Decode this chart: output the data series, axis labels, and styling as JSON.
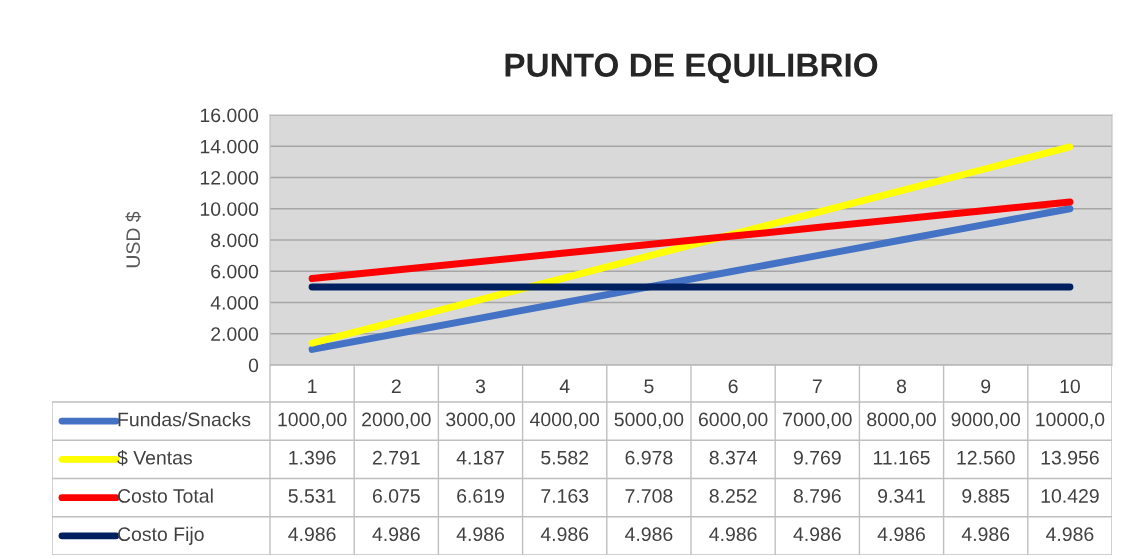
{
  "chart_data": {
    "type": "line",
    "title": "PUNTO DE EQUILIBRIO",
    "ylabel": "USD $",
    "categories": [
      "1",
      "2",
      "3",
      "4",
      "5",
      "6",
      "7",
      "8",
      "9",
      "10"
    ],
    "ylim": [
      0,
      16000
    ],
    "yticks": [
      0,
      {
        "value": 2000,
        "label": "2.000"
      },
      {
        "value": 4000,
        "label": "4.000"
      },
      {
        "value": 6000,
        "label": "6.000"
      },
      {
        "value": 8000,
        "label": "8.000"
      },
      {
        "value": 10000,
        "label": "10.000"
      },
      {
        "value": 12000,
        "label": "12.000"
      },
      {
        "value": 14000,
        "label": "14.000"
      },
      {
        "value": 16000,
        "label": "16.000"
      }
    ],
    "grid": "y",
    "legend": "bottom",
    "marker": "none",
    "line_style": "solid",
    "series": [
      {
        "name": "Fundas/Snacks",
        "color": "#4472c4",
        "values": [
          1000,
          2000,
          3000,
          4000,
          5000,
          6000,
          7000,
          8000,
          9000,
          10000
        ],
        "value_labels": [
          "1000,00",
          "2000,00",
          "3000,00",
          "4000,00",
          "5000,00",
          "6000,00",
          "7000,00",
          "8000,00",
          "9000,00",
          "10000,0"
        ]
      },
      {
        "name": "$ Ventas",
        "color": "#ffff00",
        "values": [
          1396,
          2791,
          4187,
          5582,
          6978,
          8374,
          9769,
          11165,
          12560,
          13956
        ],
        "value_labels": [
          "1.396",
          "2.791",
          "4.187",
          "5.582",
          "6.978",
          "8.374",
          "9.769",
          "11.165",
          "12.560",
          "13.956"
        ]
      },
      {
        "name": "Costo Total",
        "color": "#ff0000",
        "values": [
          5531,
          6075,
          6619,
          7163,
          7708,
          8252,
          8796,
          9341,
          9885,
          10429
        ],
        "value_labels": [
          "5.531",
          "6.075",
          "6.619",
          "7.163",
          "7.708",
          "8.252",
          "8.796",
          "9.341",
          "9.885",
          "10.429"
        ]
      },
      {
        "name": "Costo Fijo",
        "color": "#002060",
        "values": [
          4986,
          4986,
          4986,
          4986,
          4986,
          4986,
          4986,
          4986,
          4986,
          4986
        ],
        "value_labels": [
          "4.986",
          "4.986",
          "4.986",
          "4.986",
          "4.986",
          "4.986",
          "4.986",
          "4.986",
          "4.986",
          "4.986"
        ]
      }
    ]
  }
}
